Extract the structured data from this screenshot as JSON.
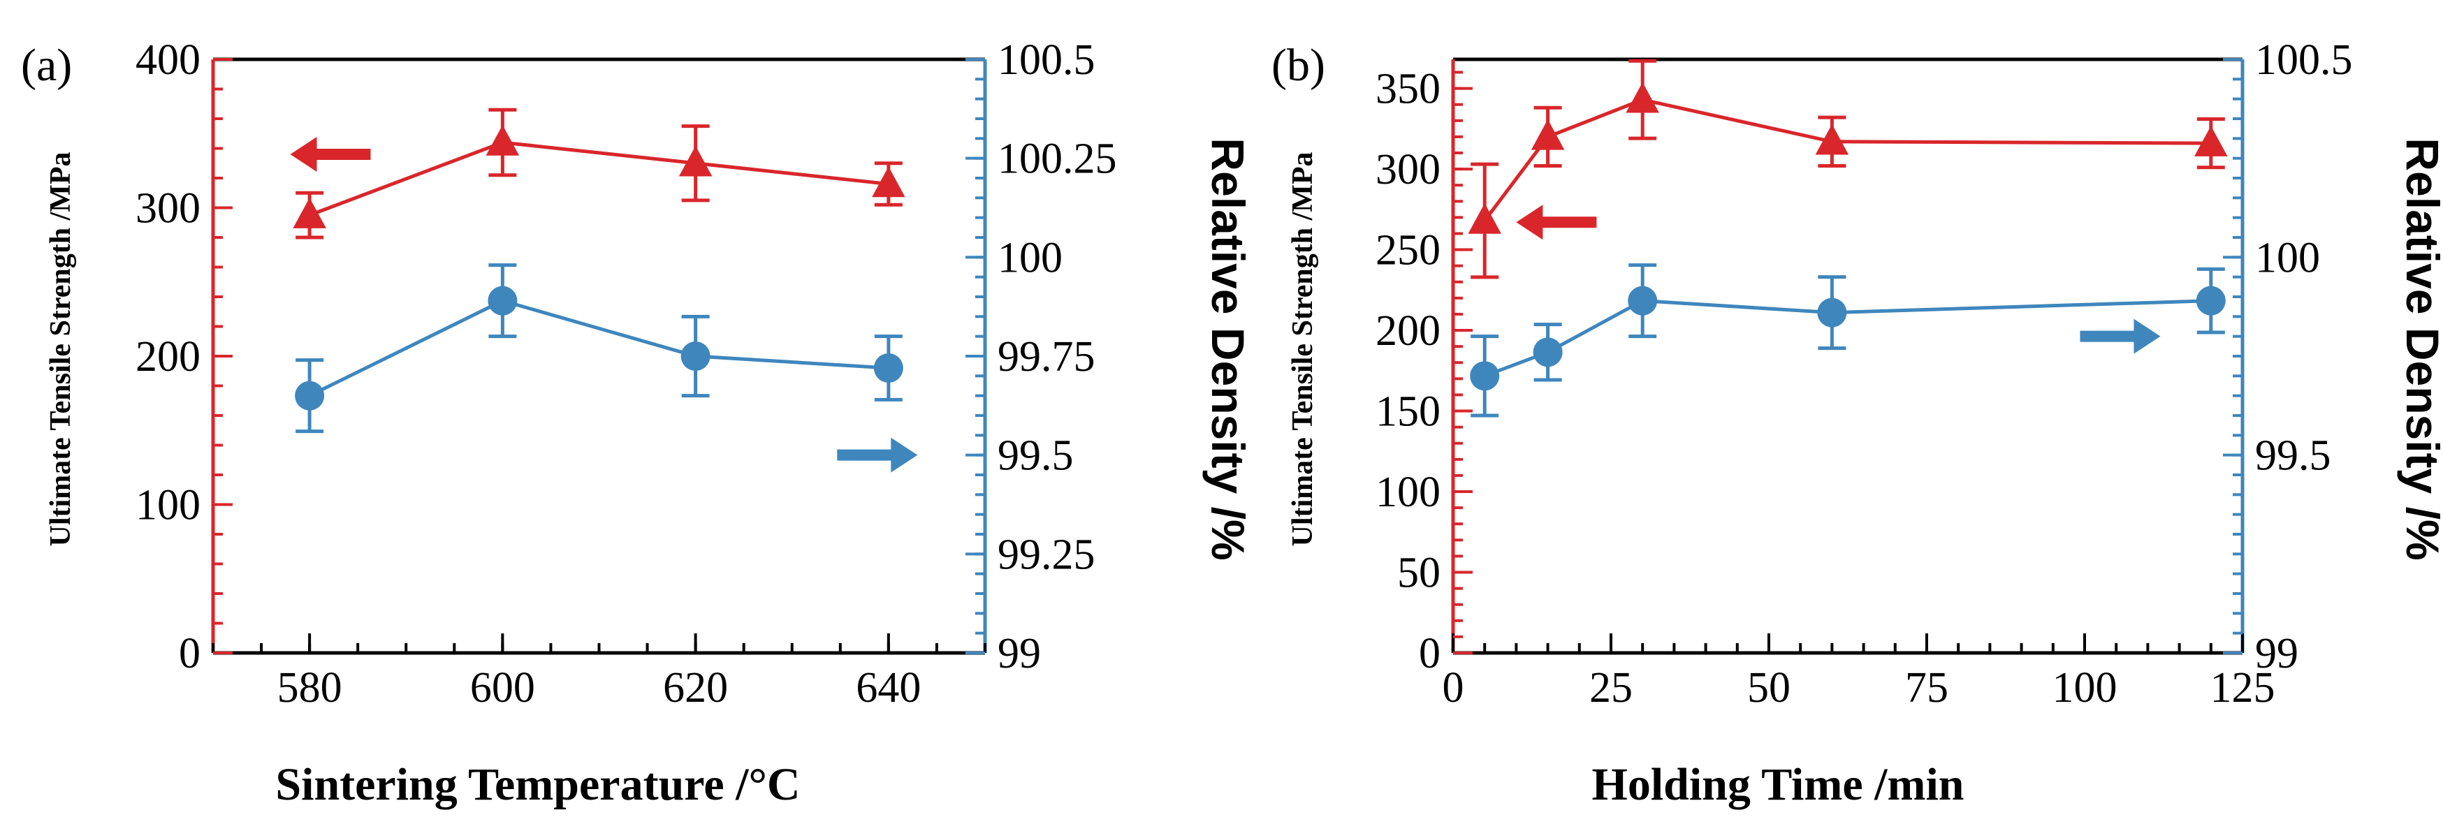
{
  "colors": {
    "red": "#d9262b",
    "blue": "#3f86bd",
    "axis": "#000000"
  },
  "chart_data": [
    {
      "type": "line",
      "panel_label": "(a)",
      "xlabel": "Sintering Temperature /°C",
      "ylabel_left": "Ultimate Tensile Strength /MPa",
      "ylabel_right": "Relative Density /%",
      "xlim": [
        570,
        650
      ],
      "x_ticks": [
        580,
        600,
        620,
        640
      ],
      "x_tick_labels": [
        "580",
        "600",
        "620",
        "640"
      ],
      "x_minor_step": 5,
      "ylim_left": [
        0,
        400
      ],
      "y_left_ticks": [
        0,
        100,
        200,
        300,
        400
      ],
      "y_left_tick_labels": [
        "0",
        "100",
        "200",
        "300",
        "400"
      ],
      "y_left_minor_step": 20,
      "ylim_right": [
        99,
        100.5
      ],
      "y_right_ticks": [
        99,
        99.25,
        99.5,
        99.75,
        100,
        100.25,
        100.5
      ],
      "y_right_tick_labels": [
        "99",
        "99.25",
        "99.5",
        "99.75",
        "100",
        "100.25",
        "100.5"
      ],
      "y_right_minor_step": 0.05,
      "series": [
        {
          "name": "Ultimate Tensile Strength",
          "axis": "left",
          "marker": "triangle",
          "color": "#d9262b",
          "x": [
            580,
            600,
            620,
            640
          ],
          "y": [
            295,
            344,
            330,
            316
          ],
          "err": [
            15,
            22,
            25,
            14
          ]
        },
        {
          "name": "Relative Density",
          "axis": "right",
          "marker": "circle",
          "color": "#3f86bd",
          "x": [
            580,
            600,
            620,
            640
          ],
          "y": [
            99.65,
            99.89,
            99.75,
            99.72
          ],
          "err": [
            0.09,
            0.09,
            0.1,
            0.08
          ]
        }
      ],
      "annotations": [
        {
          "type": "arrow",
          "direction": "left",
          "series": "Ultimate Tensile Strength",
          "x": 578,
          "y": 336
        },
        {
          "type": "arrow",
          "direction": "right",
          "series": "Relative Density",
          "x": 643,
          "y": 99.5
        }
      ]
    },
    {
      "type": "line",
      "panel_label": "(b)",
      "xlabel": "Holding Time /min",
      "ylabel_left": "Ultimate Tensile Strength /MPa",
      "ylabel_right": "Relative Density /%",
      "xlim": [
        0,
        125
      ],
      "x_ticks": [
        0,
        25,
        50,
        75,
        100,
        125
      ],
      "x_tick_labels": [
        "0",
        "25",
        "50",
        "75",
        "100",
        "125"
      ],
      "x_minor_step": 5,
      "ylim_left": [
        0,
        368
      ],
      "y_left_ticks": [
        0,
        50,
        100,
        150,
        200,
        250,
        300,
        350
      ],
      "y_left_tick_labels": [
        "0",
        "50",
        "100",
        "150",
        "200",
        "250",
        "300",
        "350"
      ],
      "y_left_minor_step": 10,
      "ylim_right": [
        99,
        100.5
      ],
      "y_right_ticks": [
        99,
        99.5,
        100,
        100.5
      ],
      "y_right_tick_labels": [
        "99",
        "99.5",
        "100",
        "100.5"
      ],
      "y_right_minor_step": 0.05,
      "series": [
        {
          "name": "Ultimate Tensile Strength",
          "axis": "left",
          "marker": "triangle",
          "color": "#d9262b",
          "x": [
            5,
            15,
            30,
            60,
            120
          ],
          "y": [
            268,
            320,
            343,
            317,
            316
          ],
          "err": [
            35,
            18,
            24,
            15,
            15
          ]
        },
        {
          "name": "Relative Density",
          "axis": "right",
          "marker": "circle",
          "color": "#3f86bd",
          "x": [
            5,
            15,
            30,
            60,
            120
          ],
          "y": [
            99.7,
            99.76,
            99.89,
            99.86,
            99.89
          ],
          "err": [
            0.1,
            0.07,
            0.09,
            0.09,
            0.08
          ]
        }
      ],
      "annotations": [
        {
          "type": "arrow",
          "direction": "left",
          "series": "Ultimate Tensile Strength",
          "x": 10,
          "y": 267
        },
        {
          "type": "arrow",
          "direction": "right",
          "series": "Relative Density",
          "x": 112,
          "y": 99.8
        }
      ]
    }
  ]
}
